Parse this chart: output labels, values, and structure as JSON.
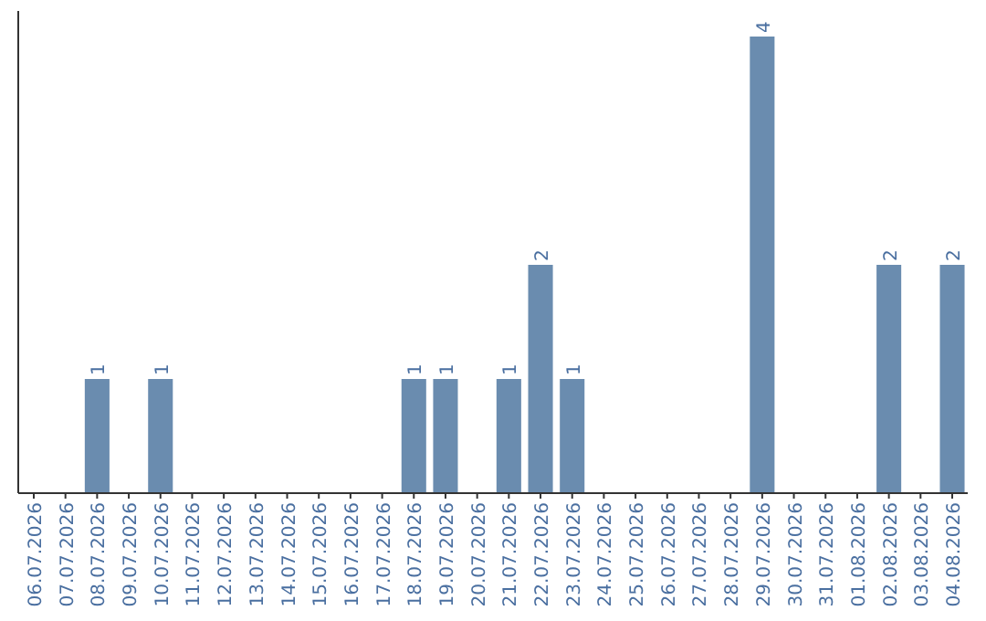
{
  "chart_data": {
    "type": "bar",
    "categories": [
      "06.07.2026",
      "07.07.2026",
      "08.07.2026",
      "09.07.2026",
      "10.07.2026",
      "11.07.2026",
      "12.07.2026",
      "13.07.2026",
      "14.07.2026",
      "15.07.2026",
      "16.07.2026",
      "17.07.2026",
      "18.07.2026",
      "19.07.2026",
      "20.07.2026",
      "21.07.2026",
      "22.07.2026",
      "23.07.2026",
      "24.07.2026",
      "25.07.2026",
      "26.07.2026",
      "27.07.2026",
      "28.07.2026",
      "29.07.2026",
      "30.07.2026",
      "31.07.2026",
      "01.08.2026",
      "02.08.2026",
      "03.08.2026",
      "04.08.2026"
    ],
    "values": [
      0,
      0,
      1,
      0,
      1,
      0,
      0,
      0,
      0,
      0,
      0,
      0,
      1,
      1,
      0,
      1,
      2,
      1,
      0,
      0,
      0,
      0,
      0,
      4,
      0,
      0,
      0,
      2,
      0,
      2
    ],
    "value_labels": [
      null,
      null,
      "1",
      null,
      "1",
      null,
      null,
      null,
      null,
      null,
      null,
      null,
      "1",
      "1",
      null,
      "1",
      "2",
      "1",
      null,
      null,
      null,
      null,
      null,
      "4",
      null,
      null,
      null,
      "2",
      null,
      "2"
    ],
    "color": "#6a8caf",
    "tick_labels": "x"
  }
}
